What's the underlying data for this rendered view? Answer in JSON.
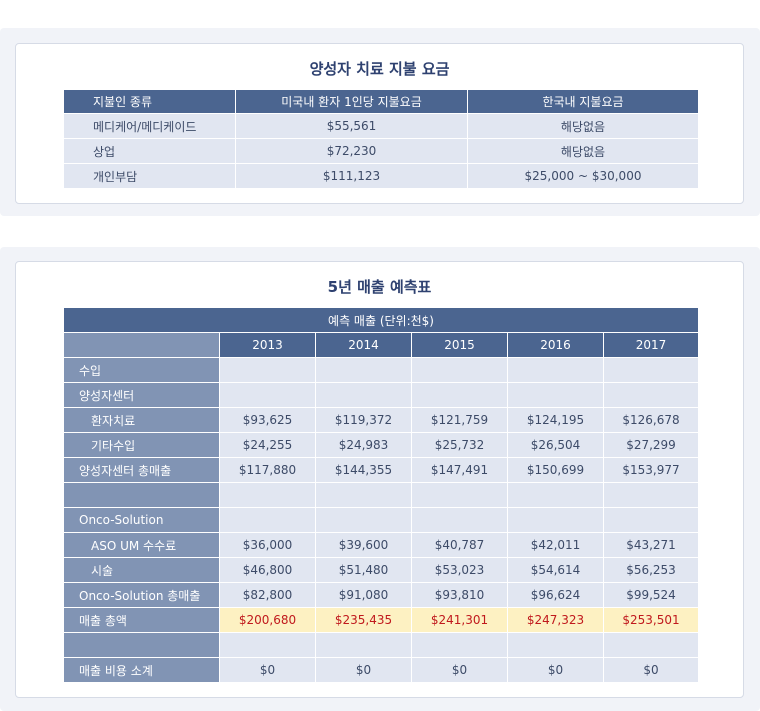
{
  "payment_table": {
    "title": "양성자 치료 지불 요금",
    "headers": [
      "지불인 종류",
      "미국내 환자 1인당 지불요금",
      "한국내 지불요금"
    ],
    "rows": [
      [
        "메디케어/메디케이드",
        "$55,561",
        "해당없음"
      ],
      [
        "상업",
        "$72,230",
        "해당없음"
      ],
      [
        "개인부담",
        "$111,123",
        "$25,000 ~ $30,000"
      ]
    ]
  },
  "forecast_table": {
    "title": "5년 매출 예측표",
    "caption": "예측 매출 (단위:천$)",
    "years": [
      "2013",
      "2014",
      "2015",
      "2016",
      "2017"
    ],
    "rows": [
      {
        "label": "수입",
        "values": [
          "",
          "",
          "",
          "",
          ""
        ]
      },
      {
        "label": "양성자센터",
        "values": [
          "",
          "",
          "",
          "",
          ""
        ]
      },
      {
        "label": "환자치료",
        "values": [
          "$93,625",
          "$119,372",
          "$121,759",
          "$124,195",
          "$126,678"
        ]
      },
      {
        "label": "기타수입",
        "values": [
          "$24,255",
          "$24,983",
          "$25,732",
          "$26,504",
          "$27,299"
        ]
      },
      {
        "label": "양성자센터 총매출",
        "values": [
          "$117,880",
          "$144,355",
          "$147,491",
          "$150,699",
          "$153,977"
        ]
      },
      {
        "label": "",
        "values": [
          "",
          "",
          "",
          "",
          ""
        ]
      },
      {
        "label": "Onco-Solution",
        "values": [
          "",
          "",
          "",
          "",
          ""
        ]
      },
      {
        "label": "ASO UM 수수료",
        "values": [
          "$36,000",
          "$39,600",
          "$40,787",
          "$42,011",
          "$43,271"
        ]
      },
      {
        "label": "시술",
        "values": [
          "$46,800",
          "$51,480",
          "$53,023",
          "$54,614",
          "$56,253"
        ]
      },
      {
        "label": "Onco-Solution 총매출",
        "values": [
          "$82,800",
          "$91,080",
          "$93,810",
          "$96,624",
          "$99,524"
        ]
      },
      {
        "label": "매출 총액",
        "values": [
          "$200,680",
          "$235,435",
          "$241,301",
          "$247,323",
          "$253,501"
        ]
      },
      {
        "label": "",
        "values": [
          "",
          "",
          "",
          "",
          ""
        ]
      },
      {
        "label": "매출 비용 소계",
        "values": [
          "$0",
          "$0",
          "$0",
          "$0",
          "$0"
        ]
      }
    ]
  }
}
